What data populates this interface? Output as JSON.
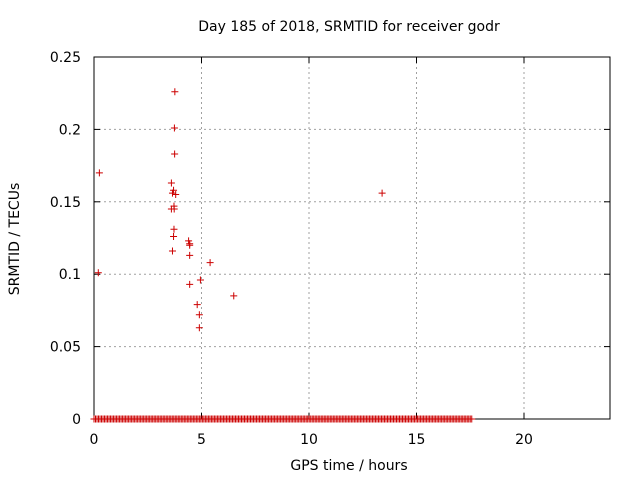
{
  "chart_data": {
    "type": "scatter",
    "title": "Day 185 of 2018, SRMTID for receiver godr",
    "xlabel": "GPS time / hours",
    "ylabel": "SRMTID / TECUs",
    "xlim": [
      0,
      24
    ],
    "ylim": [
      0,
      0.25
    ],
    "xticks": [
      0,
      5,
      10,
      15,
      20
    ],
    "xtick_labels": [
      "0",
      "5",
      "10",
      "15",
      "20"
    ],
    "yticks": [
      0,
      0.05,
      0.1,
      0.15,
      0.2,
      0.25
    ],
    "ytick_labels": [
      "0",
      "0.05",
      "0.1",
      "0.15",
      "0.2",
      "0.25"
    ],
    "grid": true,
    "marker": "+",
    "color": "#cc0000",
    "baseline_zero_x_range": [
      0,
      17.6
    ],
    "series": [
      {
        "name": "SRMTID",
        "x": [
          0.25,
          0.2,
          3.6,
          3.6,
          3.65,
          3.65,
          3.7,
          3.7,
          3.72,
          3.72,
          3.73,
          3.74,
          3.75,
          3.76,
          3.8,
          4.4,
          4.45,
          4.45,
          4.45,
          4.45,
          4.8,
          4.9,
          4.9,
          4.95,
          5.4,
          6.5,
          13.4
        ],
        "y": [
          0.17,
          0.101,
          0.163,
          0.145,
          0.116,
          0.156,
          0.158,
          0.126,
          0.131,
          0.147,
          0.145,
          0.201,
          0.183,
          0.226,
          0.155,
          0.123,
          0.12,
          0.121,
          0.113,
          0.093,
          0.079,
          0.072,
          0.063,
          0.096,
          0.108,
          0.085,
          0.156
        ]
      }
    ]
  }
}
